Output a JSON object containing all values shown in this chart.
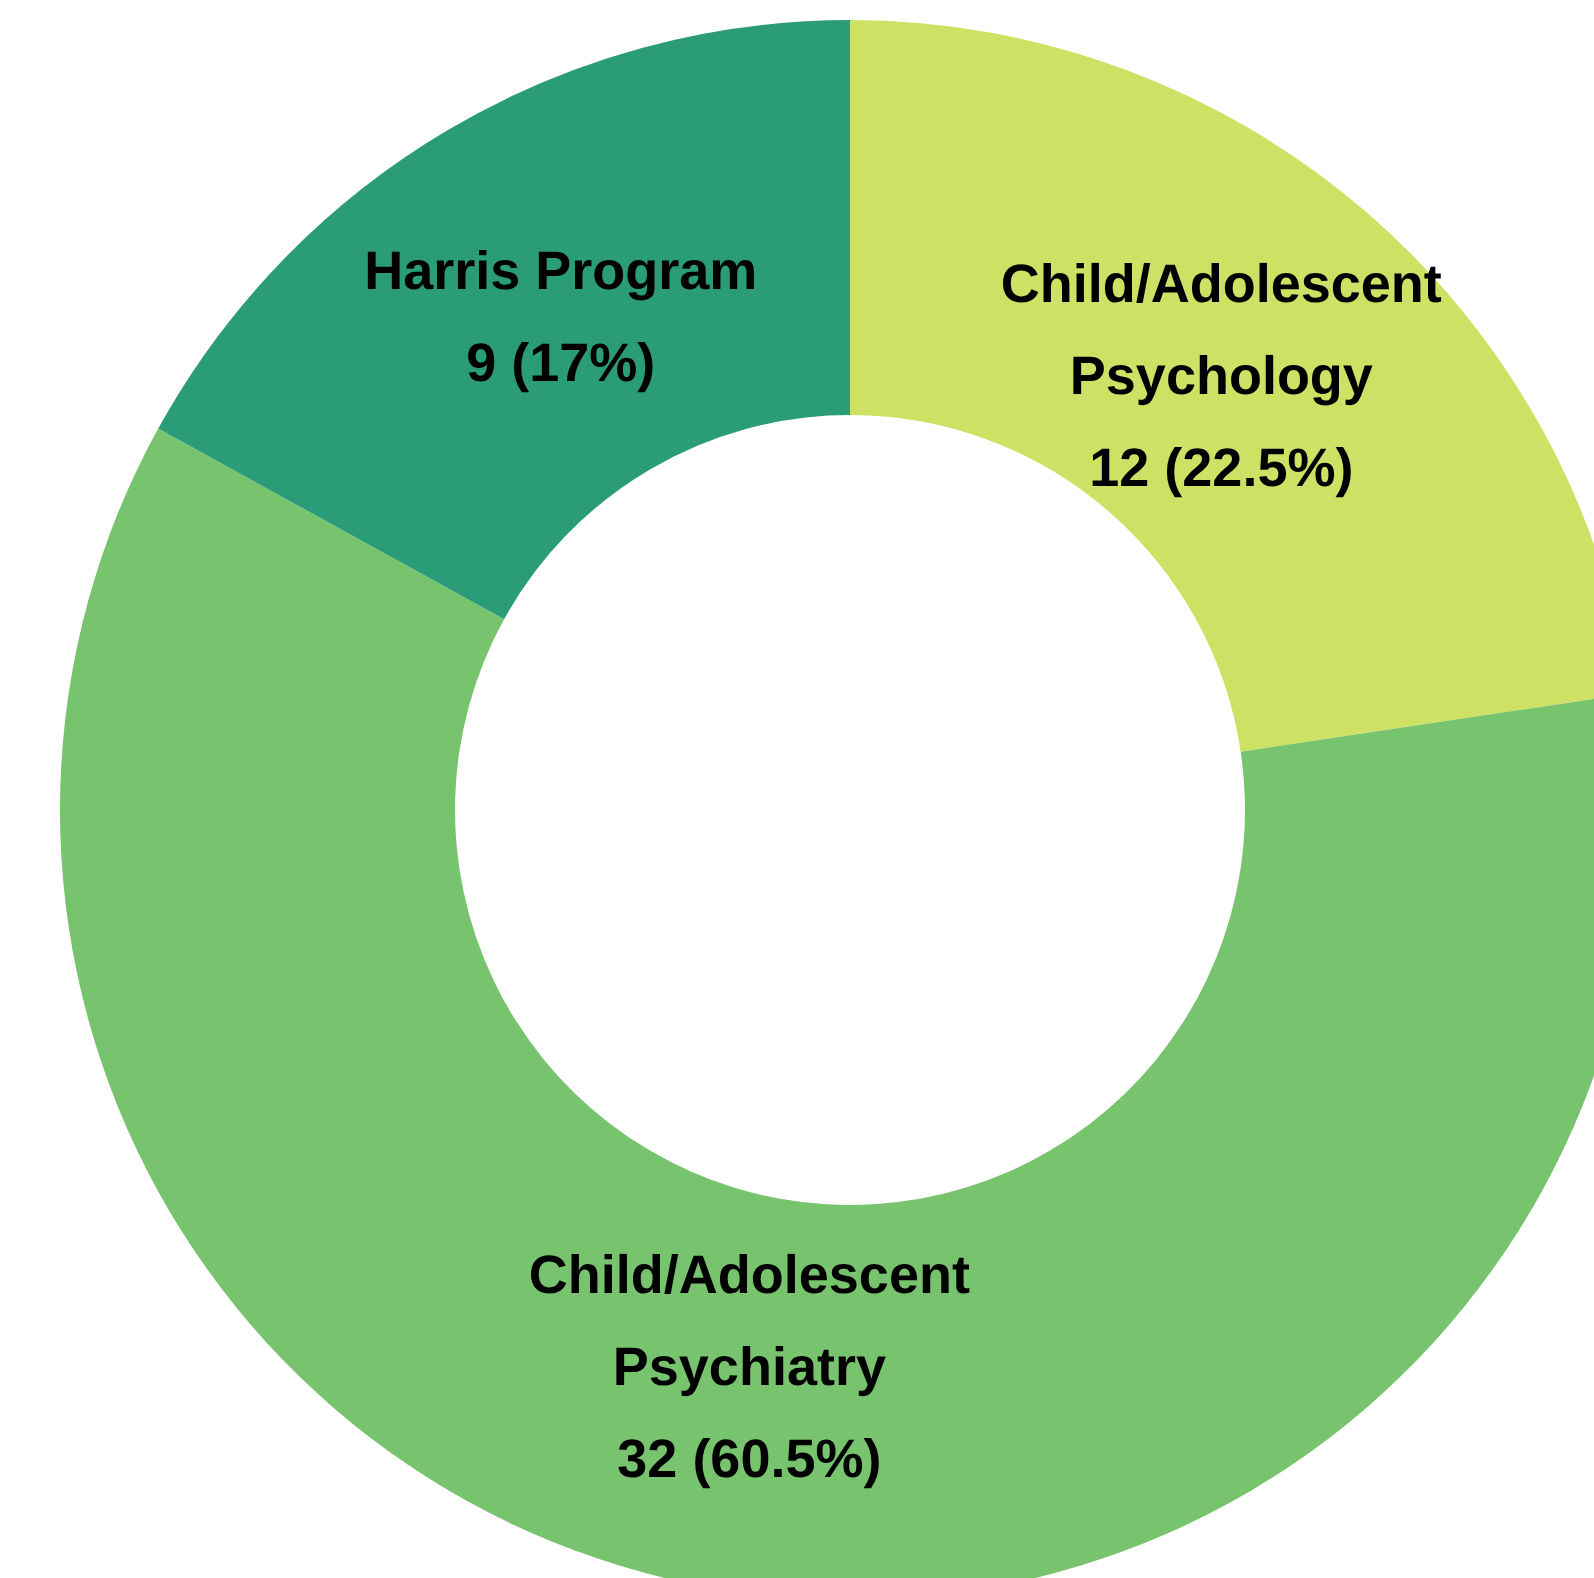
{
  "chart_data": {
    "type": "donut",
    "categories": [
      "Child/Adolescent Psychology",
      "Child/Adolescent Psychiatry",
      "Harris Program"
    ],
    "values": [
      12,
      32,
      9
    ],
    "colors": [
      "#cde264",
      "#78c46e",
      "#2a9d78"
    ],
    "value_labels": [
      "12 (22.5%)",
      "32 (60.5%)",
      "9 (17%)"
    ],
    "legend": false
  }
}
